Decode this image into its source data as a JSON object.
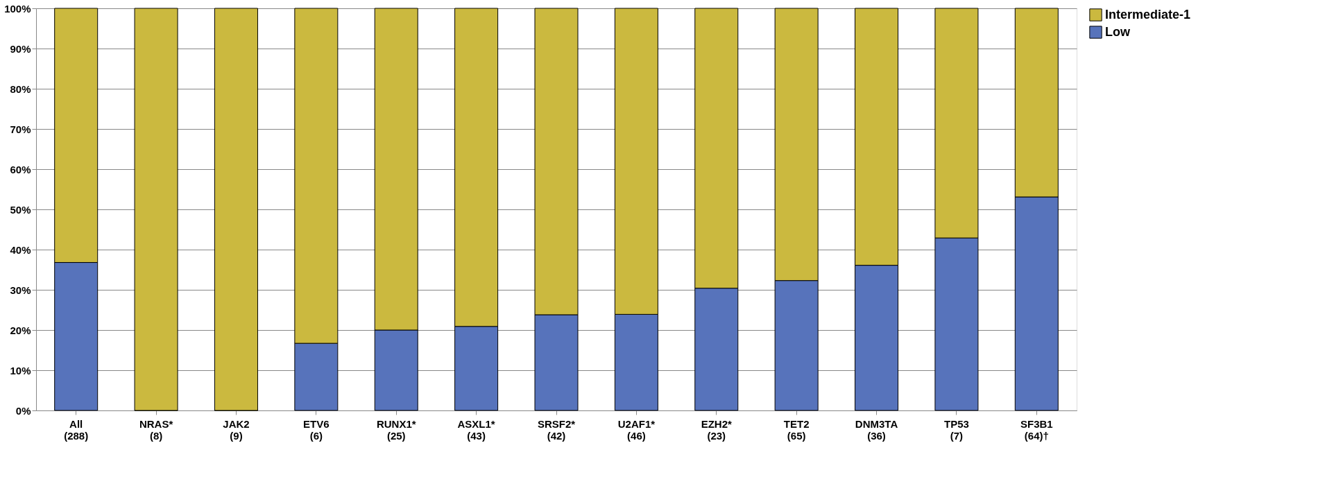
{
  "chart_data": {
    "type": "bar",
    "stacked": true,
    "categories": [
      "All (288)",
      "NRAS* (8)",
      "JAK2 (9)",
      "ETV6 (6)",
      "RUNX1* (25)",
      "ASXL1* (43)",
      "SRSF2* (42)",
      "U2AF1* (46)",
      "EZH2* (23)",
      "TET2 (65)",
      "DNM3TA (36)",
      "TP53 (7)",
      "SF3B1 (64)†"
    ],
    "series": [
      {
        "name": "Low",
        "color": "#5773bb",
        "values": [
          36.8,
          0,
          0,
          16.7,
          20.0,
          20.9,
          23.8,
          23.9,
          30.4,
          32.3,
          36.1,
          42.9,
          53.1
        ]
      },
      {
        "name": "Intermediate-1",
        "color": "#cbb93f",
        "values": [
          63.2,
          100,
          100,
          83.3,
          80.0,
          79.1,
          76.2,
          76.1,
          69.6,
          67.7,
          63.9,
          57.1,
          46.9
        ]
      }
    ],
    "ylim": [
      0,
      100
    ],
    "yticks": [
      {
        "value": 0,
        "label": "0%"
      },
      {
        "value": 10,
        "label": "10%"
      },
      {
        "value": 20,
        "label": "20%"
      },
      {
        "value": 30,
        "label": "30%"
      },
      {
        "value": 40,
        "label": "40%"
      },
      {
        "value": 50,
        "label": "50%"
      },
      {
        "value": 60,
        "label": "60%"
      },
      {
        "value": 70,
        "label": "70%"
      },
      {
        "value": 80,
        "label": "80%"
      },
      {
        "value": 90,
        "label": "90%"
      },
      {
        "value": 100,
        "label": "100%"
      }
    ],
    "grid": "y",
    "legend": "right"
  }
}
